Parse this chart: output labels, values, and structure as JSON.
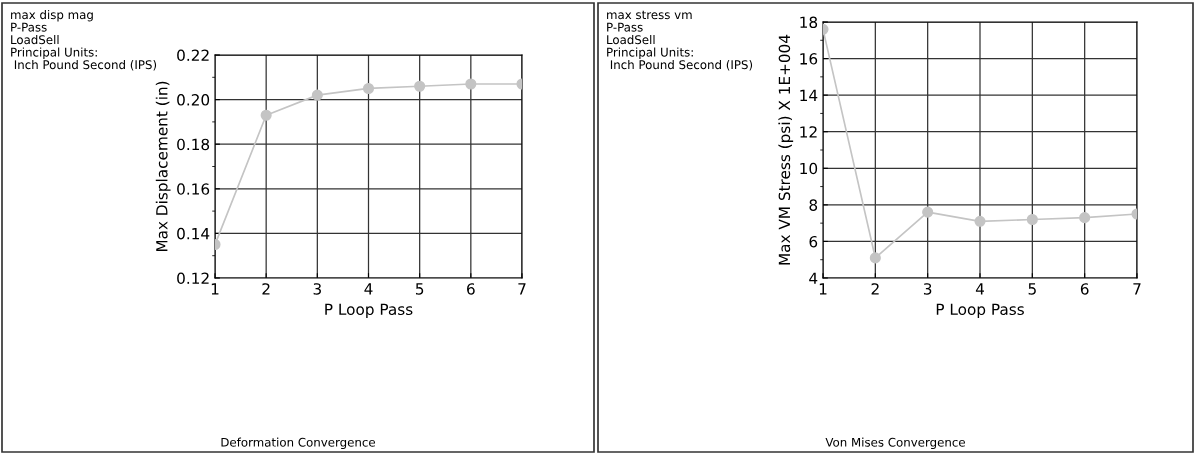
{
  "chart_data": [
    {
      "type": "line",
      "xlabel": "P Loop Pass",
      "ylabel": "Max Displacement (in)",
      "annotations": [
        "max disp mag",
        "P-Pass",
        "LoadSell",
        "Principal Units:",
        " Inch Pound Second (IPS)",
        "Deformation Convergence"
      ],
      "x": [
        1,
        2,
        3,
        4,
        5,
        6,
        7
      ],
      "series": [
        {
          "color": "#c4c4c4",
          "values": [
            0.135,
            0.193,
            0.202,
            0.205,
            0.206,
            0.207,
            0.207
          ]
        }
      ],
      "xlim": [
        1,
        7
      ],
      "xticks": [
        1,
        2,
        3,
        4,
        5,
        6,
        7
      ],
      "ylim": [
        0.12,
        0.22
      ],
      "yticks": [
        {
          "value": 0.12,
          "label": "0.12"
        },
        {
          "value": 0.14,
          "label": "0.14"
        },
        {
          "value": 0.16,
          "label": "0.16"
        },
        {
          "value": 0.18,
          "label": "0.18"
        },
        {
          "value": 0.2,
          "label": "0.20"
        },
        {
          "value": 0.22,
          "label": "0.22"
        }
      ],
      "grid": true,
      "marker": "circle",
      "line_style": "solid",
      "legend": false
    },
    {
      "type": "line",
      "xlabel": "P Loop Pass",
      "ylabel": "Max VM Stress (psi) X 1E+004",
      "annotations": [
        "max stress vm",
        "P-Pass",
        "LoadSell",
        "Principal Units:",
        " Inch Pound Second (IPS)",
        "Von Mises Convergence"
      ],
      "x": [
        1,
        2,
        3,
        4,
        5,
        6,
        7
      ],
      "series": [
        {
          "color": "#c4c4c4",
          "values": [
            17.6,
            5.1,
            7.6,
            7.1,
            7.2,
            7.3,
            7.5
          ]
        }
      ],
      "xlim": [
        1,
        7
      ],
      "xticks": [
        1,
        2,
        3,
        4,
        5,
        6,
        7
      ],
      "ylim": [
        4,
        18
      ],
      "yticks": [
        4,
        6,
        8,
        10,
        12,
        14,
        16,
        18
      ],
      "grid": true,
      "marker": "circle",
      "line_style": "solid",
      "legend": false
    }
  ]
}
